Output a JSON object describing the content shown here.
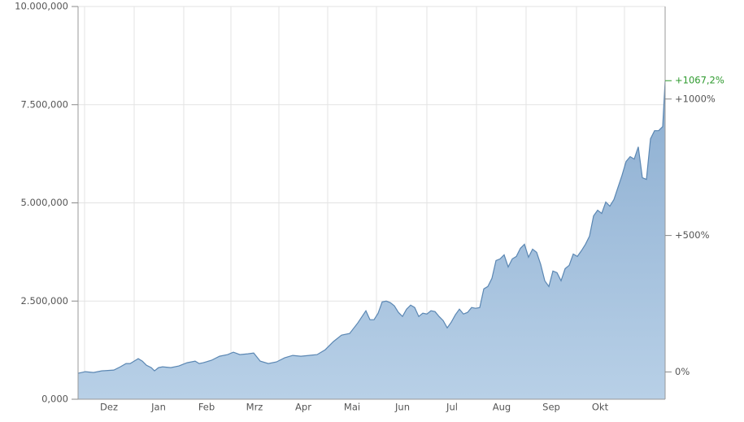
{
  "chart_data": {
    "type": "area",
    "color": "#5b87b3",
    "fill": "#9dbbd9",
    "grid": true,
    "xlim": [
      0,
      361
    ],
    "ylim": [
      0,
      10000000
    ],
    "yticks": [
      {
        "value": 0,
        "label": "0,000"
      },
      {
        "value": 2500000,
        "label": "2.500,000"
      },
      {
        "value": 5000000,
        "label": "5.000,000"
      },
      {
        "value": 7500000,
        "label": "7.500,000"
      },
      {
        "value": 10000000,
        "label": "10.000,000"
      }
    ],
    "y2lim": [
      -100,
      1339
    ],
    "y2ticks": [
      {
        "value": 0,
        "label": "0%"
      },
      {
        "value": 500,
        "label": "+500%"
      },
      {
        "value": 1000,
        "label": "+1000%"
      }
    ],
    "xgrid": [
      4,
      34.5,
      65,
      94,
      123.5,
      153.5,
      183.5,
      214.5,
      245,
      275.5,
      306.5,
      336
    ],
    "xticks": [
      {
        "value": 19,
        "label": "Dez"
      },
      {
        "value": 49.5,
        "label": "Jan"
      },
      {
        "value": 79,
        "label": "Feb"
      },
      {
        "value": 108.5,
        "label": "Mrz"
      },
      {
        "value": 138.5,
        "label": "Apr"
      },
      {
        "value": 168.5,
        "label": "Mai"
      },
      {
        "value": 199.5,
        "label": "Jun"
      },
      {
        "value": 230,
        "label": "Jul"
      },
      {
        "value": 260.5,
        "label": "Aug"
      },
      {
        "value": 291,
        "label": "Sep"
      },
      {
        "value": 321,
        "label": "Okt"
      }
    ],
    "annotation": {
      "value": 1067.2,
      "label": "+1067,2%",
      "color": "#2e9a2e",
      "axis": "y2"
    },
    "x": [
      0,
      4.5,
      9.5,
      14.5,
      22,
      26,
      29.5,
      32,
      34.5,
      37,
      39.5,
      42,
      45,
      47,
      49.5,
      52,
      57,
      62,
      67,
      72,
      74.5,
      77,
      82,
      87,
      92,
      95.5,
      99.5,
      104.5,
      108,
      112,
      117,
      122,
      127,
      132,
      137,
      142,
      147,
      152,
      157,
      162,
      167,
      172,
      177,
      179.5,
      182,
      184.5,
      187,
      189.5,
      192,
      194.5,
      197,
      199.5,
      202,
      204.5,
      207,
      209.5,
      212,
      214.5,
      217,
      219.5,
      222,
      224.5,
      227,
      229.5,
      232,
      234.5,
      237,
      239.5,
      242,
      244.5,
      247,
      249.5,
      252,
      254.5,
      257,
      259.5,
      262,
      264.5,
      267,
      269.5,
      272,
      274.5,
      277,
      279.5,
      282,
      284.5,
      287,
      289.5,
      292,
      294.5,
      297,
      299.5,
      302,
      304.5,
      307,
      309.5,
      312,
      314.5,
      317,
      319.5,
      322,
      324.5,
      327,
      329.5,
      332,
      334.5,
      337,
      339.5,
      342,
      344.5,
      347,
      349.5,
      352,
      354.5,
      357,
      359.5,
      361
    ],
    "values": [
      661000,
      702000,
      682000,
      723000,
      744000,
      826000,
      909000,
      909000,
      971000,
      1033000,
      971000,
      868000,
      806000,
      723000,
      806000,
      826000,
      806000,
      847000,
      930000,
      971000,
      909000,
      930000,
      992000,
      1095000,
      1136000,
      1198000,
      1136000,
      1157000,
      1178000,
      971000,
      909000,
      950000,
      1054000,
      1116000,
      1095000,
      1116000,
      1136000,
      1260000,
      1467000,
      1632000,
      1674000,
      1942000,
      2252000,
      2025000,
      2025000,
      2190000,
      2479000,
      2500000,
      2459000,
      2376000,
      2211000,
      2107000,
      2293000,
      2397000,
      2335000,
      2107000,
      2190000,
      2169000,
      2252000,
      2231000,
      2107000,
      2004000,
      1818000,
      1963000,
      2149000,
      2293000,
      2169000,
      2211000,
      2335000,
      2314000,
      2335000,
      2810000,
      2872000,
      3078000,
      3533000,
      3574000,
      3678000,
      3368000,
      3574000,
      3636000,
      3843000,
      3946000,
      3616000,
      3822000,
      3740000,
      3430000,
      3017000,
      2872000,
      3264000,
      3223000,
      3017000,
      3326000,
      3409000,
      3698000,
      3636000,
      3781000,
      3946000,
      4153000,
      4669000,
      4814000,
      4731000,
      5021000,
      4917000,
      5083000,
      5393000,
      5702000,
      6054000,
      6178000,
      6116000,
      6426000,
      5640000,
      5599000,
      6632000,
      6839000,
      6839000,
      6942000,
      8099000
    ]
  }
}
